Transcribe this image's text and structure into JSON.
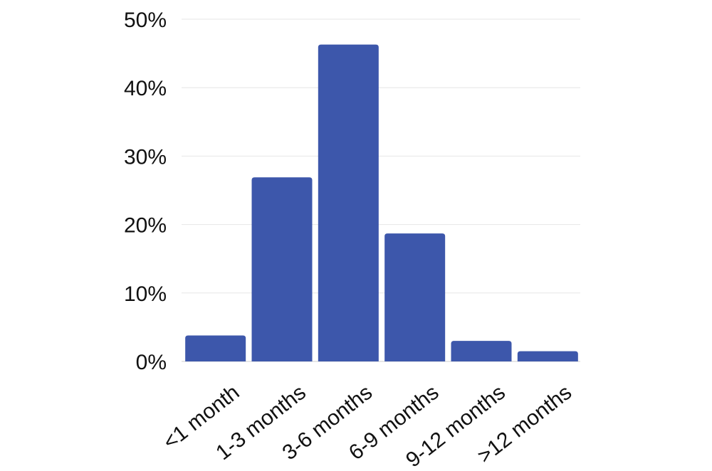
{
  "chart_data": {
    "type": "bar",
    "categories": [
      "<1 month",
      "1-3 months",
      "3-6 months",
      "6-9 months",
      "9-12 months",
      ">12 months"
    ],
    "values": [
      3.8,
      26.9,
      46.3,
      18.7,
      3.0,
      1.5
    ],
    "yticks": [
      "0%",
      "10%",
      "20%",
      "30%",
      "40%",
      "50%"
    ],
    "ytick_values": [
      0,
      10,
      20,
      30,
      40,
      50
    ],
    "ylim": [
      0,
      50
    ],
    "grid": true,
    "bar_color": "#3d57ab",
    "title": "",
    "xlabel": "",
    "ylabel": ""
  }
}
